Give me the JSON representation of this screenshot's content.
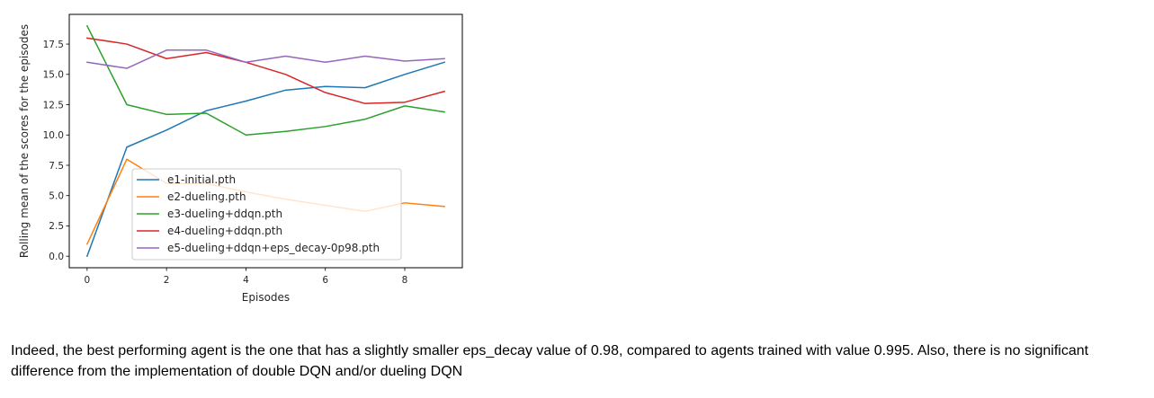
{
  "chart_data": {
    "type": "line",
    "title": "",
    "xlabel": "Episodes",
    "ylabel": "Rolling mean of the scores for the episodes",
    "x": [
      0,
      1,
      2,
      3,
      4,
      5,
      6,
      7,
      8,
      9
    ],
    "xlim": [
      -0.45,
      9.45
    ],
    "ylim": [
      -0.95,
      19.95
    ],
    "xticks": [
      0,
      2,
      4,
      6,
      8
    ],
    "yticks": [
      0.0,
      2.5,
      5.0,
      7.5,
      10.0,
      12.5,
      15.0,
      17.5
    ],
    "xtick_labels": [
      "0",
      "2",
      "4",
      "6",
      "8"
    ],
    "ytick_labels": [
      "0.0",
      "2.5",
      "5.0",
      "7.5",
      "10.0",
      "12.5",
      "15.0",
      "17.5"
    ],
    "grid": false,
    "legend_position": "lower-center",
    "series": [
      {
        "name": "e1-initial.pth",
        "color": "#1f77b4",
        "values": [
          0.0,
          9.0,
          10.4,
          12.0,
          12.8,
          13.7,
          14.0,
          13.9,
          15.0,
          16.0
        ]
      },
      {
        "name": "e2-dueling.pth",
        "color": "#ff7f0e",
        "values": [
          1.0,
          8.0,
          6.0,
          6.0,
          5.3,
          4.7,
          4.2,
          3.7,
          4.4,
          4.1
        ]
      },
      {
        "name": "e3-dueling+ddqn.pth",
        "color": "#2ca02c",
        "values": [
          19.0,
          12.5,
          11.7,
          11.8,
          10.0,
          10.3,
          10.7,
          11.3,
          12.4,
          11.9
        ]
      },
      {
        "name": "e4-dueling+ddqn.pth",
        "color": "#d62728",
        "values": [
          18.0,
          17.5,
          16.3,
          16.8,
          16.0,
          15.0,
          13.5,
          12.6,
          12.7,
          13.6
        ]
      },
      {
        "name": "e5-dueling+ddqn+eps_decay-0p98.pth",
        "color": "#9467bd",
        "values": [
          16.0,
          15.5,
          17.0,
          17.0,
          16.0,
          16.5,
          16.0,
          16.5,
          16.1,
          16.3
        ]
      }
    ]
  },
  "caption": {
    "text": "Indeed, the best performing agent is the one that has a slightly smaller eps_decay value of 0.98, compared to agents trained with value 0.995. Also, there is no significant difference from the implementation of double DQN and/or dueling DQN"
  }
}
